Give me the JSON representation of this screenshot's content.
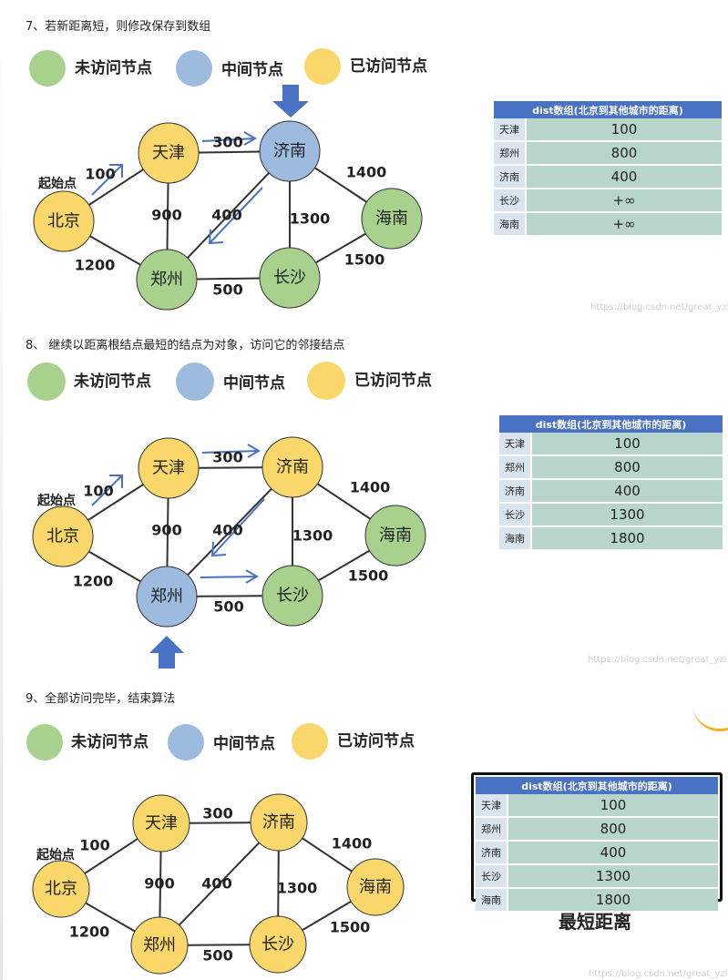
{
  "colors": {
    "unvisited": "#a9d18e",
    "middle": "#9dbbdf",
    "visited": "#f9d76b",
    "table_header": "#4a72c4",
    "arrow": "#4a72c4"
  },
  "legend": {
    "unvisited": "未访问节点",
    "middle": "中间节点",
    "visited": "已访问节点"
  },
  "start_label": "起始点",
  "edge_labels": {
    "bj_tj": "100",
    "bj_zz": "1200",
    "tj_jn": "300",
    "tj_zz": "900",
    "jn_zz": "400",
    "jn_cs": "1300",
    "jn_hn": "1400",
    "zz_cs": "500",
    "cs_hn": "1500"
  },
  "steps": [
    {
      "title": "7、若新距离短，则修改保存到数组",
      "nodes": {
        "beijing": {
          "label": "北京",
          "state": "visited"
        },
        "tianjin": {
          "label": "天津",
          "state": "visited"
        },
        "jinan": {
          "label": "济南",
          "state": "middle"
        },
        "zhengzhou": {
          "label": "郑州",
          "state": "unvisited"
        },
        "changsha": {
          "label": "长沙",
          "state": "unvisited"
        },
        "hainan": {
          "label": "海南",
          "state": "unvisited"
        }
      },
      "table": {
        "header": "dist数组(北京到其他城市的距离)",
        "rows": [
          {
            "city": "天津",
            "value": "100"
          },
          {
            "city": "郑州",
            "value": "800"
          },
          {
            "city": "济南",
            "value": "400"
          },
          {
            "city": "长沙",
            "value": "+∞"
          },
          {
            "city": "海南",
            "value": "+∞"
          }
        ]
      },
      "watermark": "https://blog.csdn.net/great_yzl"
    },
    {
      "title": "8、 继续以距离根结点最短的结点为对象，访问它的邻接结点",
      "nodes": {
        "beijing": {
          "label": "北京",
          "state": "visited"
        },
        "tianjin": {
          "label": "天津",
          "state": "visited"
        },
        "jinan": {
          "label": "济南",
          "state": "visited"
        },
        "zhengzhou": {
          "label": "郑州",
          "state": "middle"
        },
        "changsha": {
          "label": "长沙",
          "state": "unvisited"
        },
        "hainan": {
          "label": "海南",
          "state": "unvisited"
        }
      },
      "table": {
        "header": "dist数组(北京到其他城市的距离)",
        "rows": [
          {
            "city": "天津",
            "value": "100"
          },
          {
            "city": "郑州",
            "value": "800"
          },
          {
            "city": "济南",
            "value": "400"
          },
          {
            "city": "长沙",
            "value": "1300"
          },
          {
            "city": "海南",
            "value": "1800"
          }
        ]
      },
      "watermark": "https://blog.csdn.net/great_yzl"
    },
    {
      "title": "9、全部访问完毕，结束算法",
      "nodes": {
        "beijing": {
          "label": "北京",
          "state": "visited"
        },
        "tianjin": {
          "label": "天津",
          "state": "visited"
        },
        "jinan": {
          "label": "济南",
          "state": "visited"
        },
        "zhengzhou": {
          "label": "郑州",
          "state": "visited"
        },
        "changsha": {
          "label": "长沙",
          "state": "visited"
        },
        "hainan": {
          "label": "海南",
          "state": "visited"
        }
      },
      "table": {
        "header": "dist数组(北京到其他城市的距离)",
        "rows": [
          {
            "city": "天津",
            "value": "100"
          },
          {
            "city": "郑州",
            "value": "800"
          },
          {
            "city": "济南",
            "value": "400"
          },
          {
            "city": "长沙",
            "value": "1300"
          },
          {
            "city": "海南",
            "value": "1800"
          }
        ],
        "caption": "最短距离"
      },
      "watermark": "https://blog.csdn.net/great_yzl"
    }
  ]
}
